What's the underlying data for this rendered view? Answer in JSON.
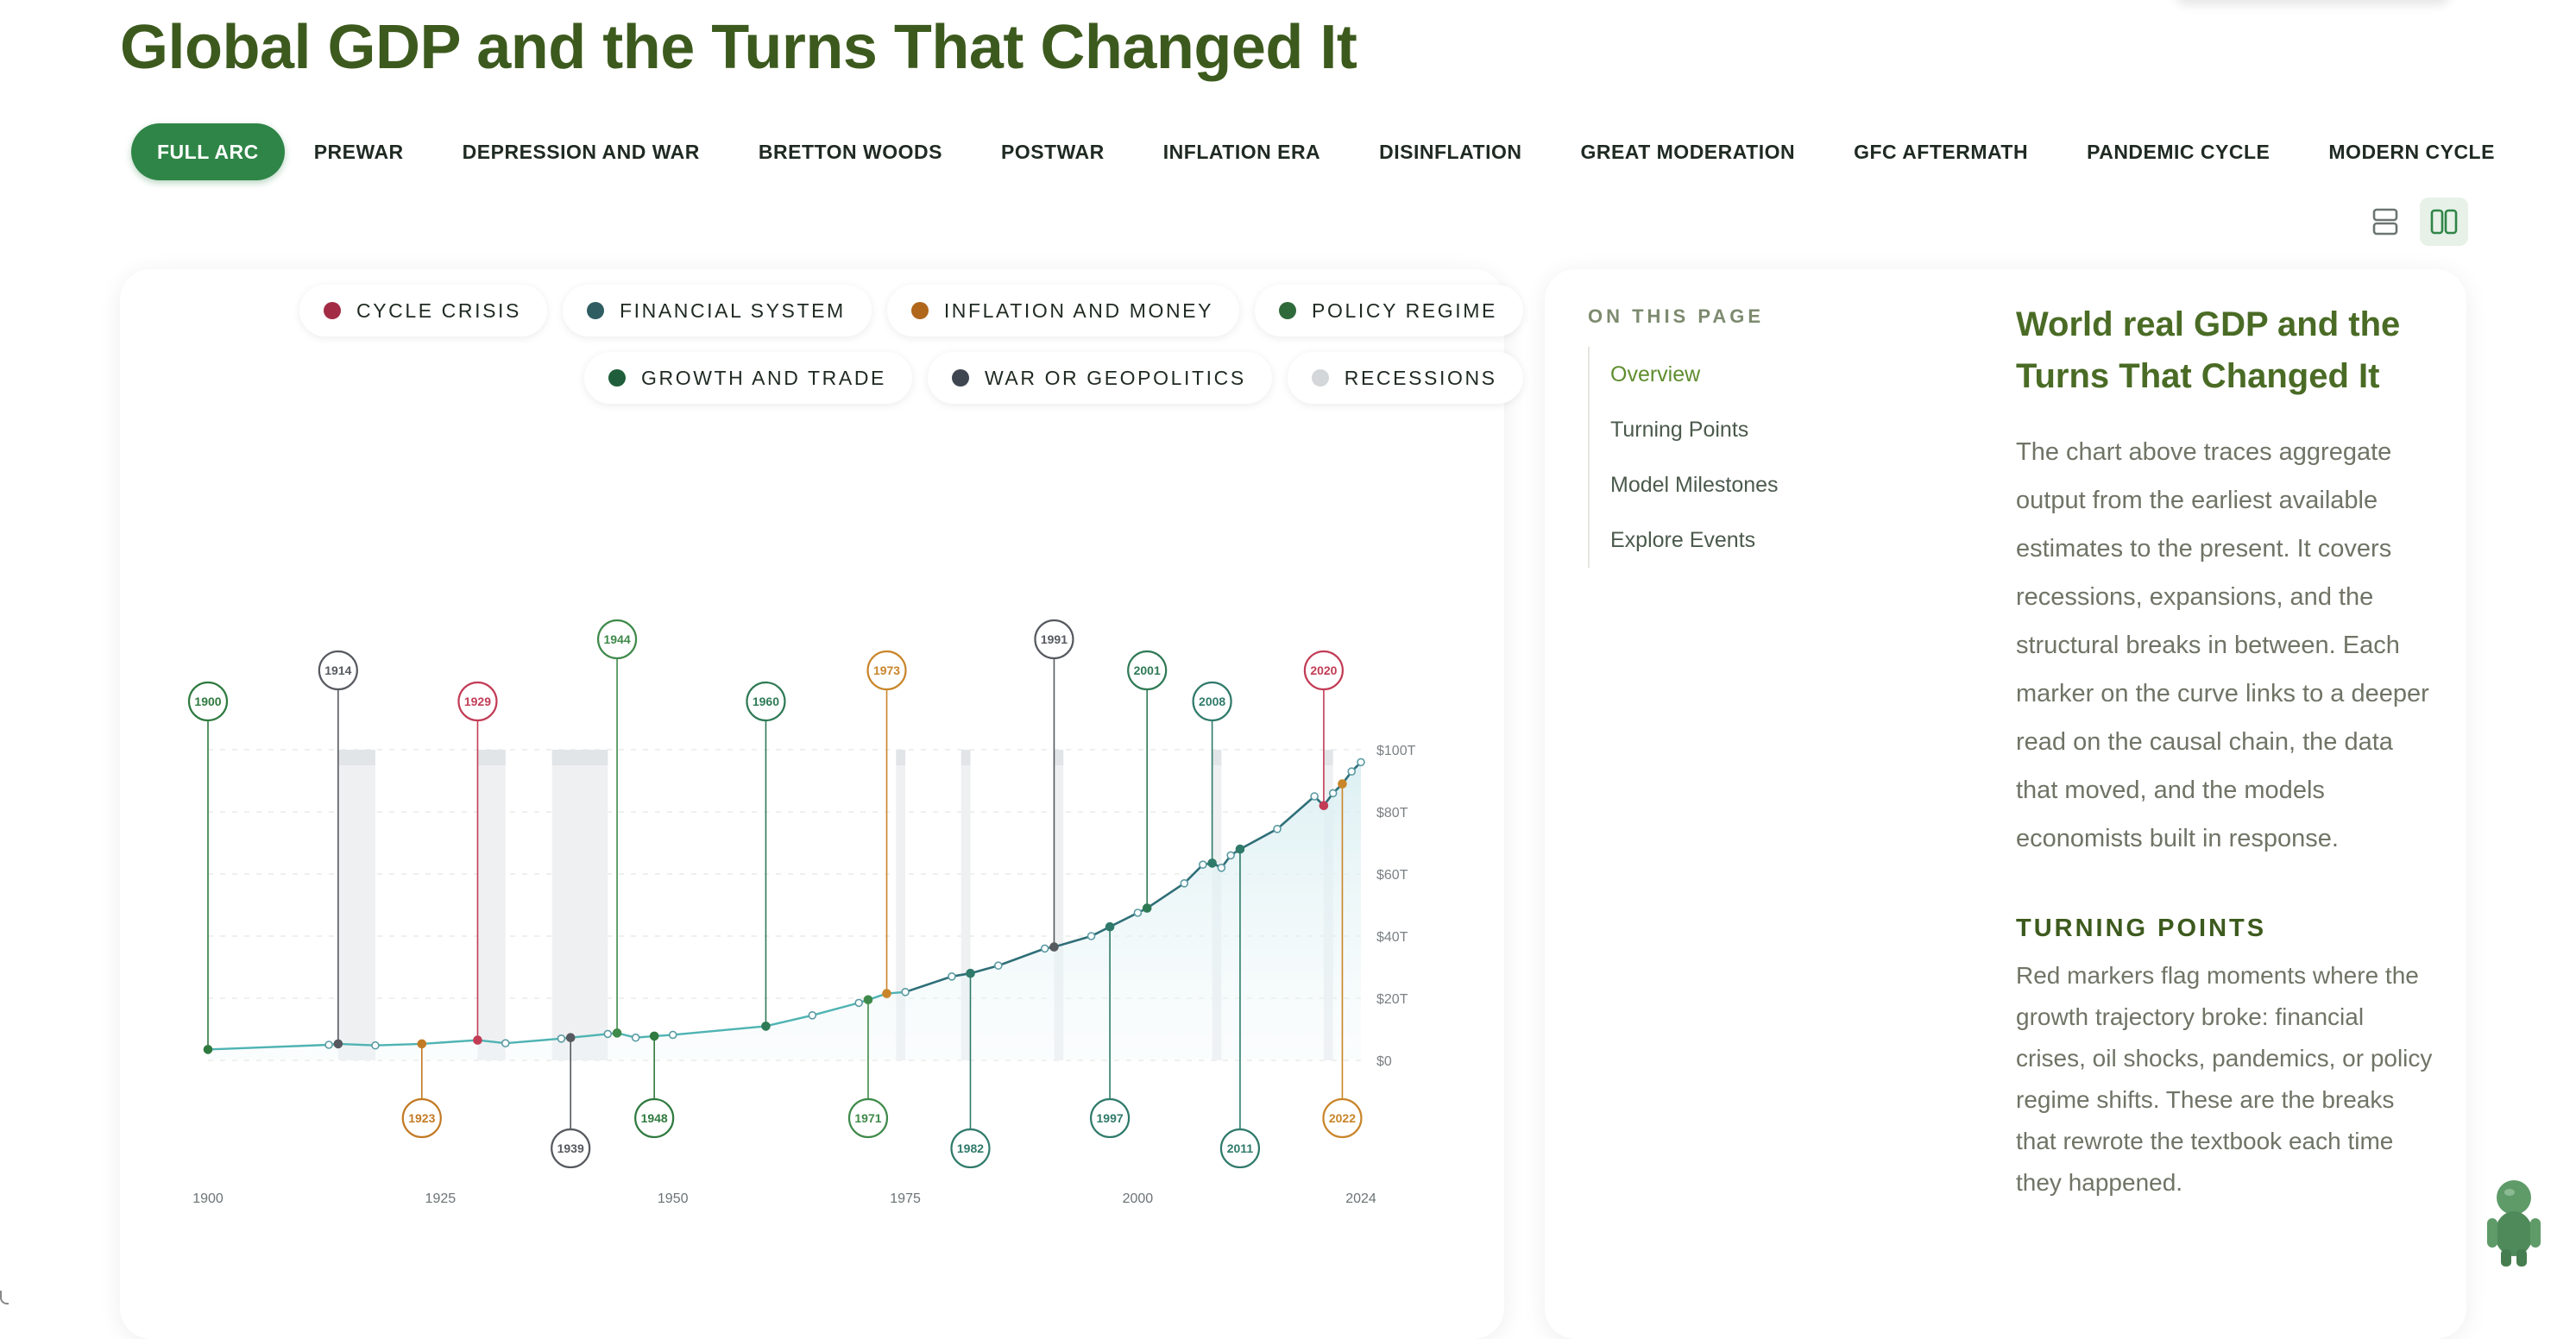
{
  "page": {
    "title": "Global GDP and the Turns That Changed It"
  },
  "tabs": [
    {
      "label": "FULL ARC",
      "active": true
    },
    {
      "label": "PREWAR"
    },
    {
      "label": "DEPRESSION AND WAR"
    },
    {
      "label": "BRETTON WOODS"
    },
    {
      "label": "POSTWAR"
    },
    {
      "label": "INFLATION ERA"
    },
    {
      "label": "DISINFLATION"
    },
    {
      "label": "GREAT MODERATION"
    },
    {
      "label": "GFC AFTERMATH"
    },
    {
      "label": "PANDEMIC CYCLE"
    },
    {
      "label": "MODERN CYCLE"
    }
  ],
  "view_toggle": {
    "stacked_icon": "rows-layout-icon",
    "split_icon": "columns-layout-icon"
  },
  "legend": [
    {
      "label": "CYCLE CRISIS",
      "color": "#a32b44"
    },
    {
      "label": "FINANCIAL SYSTEM",
      "color": "#2f5d62"
    },
    {
      "label": "INFLATION AND MONEY",
      "color": "#b0661b"
    },
    {
      "label": "POLICY REGIME",
      "color": "#2f6a3b"
    },
    {
      "label": "GROWTH AND TRADE",
      "color": "#1f5e3a"
    },
    {
      "label": "WAR OR GEOPOLITICS",
      "color": "#3f4650"
    },
    {
      "label": "RECESSIONS",
      "color": "#d4d7d9"
    }
  ],
  "chart_data": {
    "type": "area",
    "x_ticks": [
      "1900",
      "1925",
      "1950",
      "1975",
      "2000",
      "2024"
    ],
    "y_ticks": [
      "$0",
      "$20T",
      "$40T",
      "$60T",
      "$80T",
      "$100T"
    ],
    "xlim": [
      1900,
      2024
    ],
    "ylim": [
      0,
      100
    ],
    "grid": true,
    "line_color": "#4fb3b3",
    "line_color_recent": "#1e4f5e",
    "series": [
      {
        "values": [
          [
            1900,
            3.5
          ],
          [
            1913,
            5
          ],
          [
            1914,
            5.3
          ],
          [
            1918,
            4.8
          ],
          [
            1923,
            5.3
          ],
          [
            1929,
            6.5
          ],
          [
            1932,
            5.5
          ],
          [
            1938,
            7
          ],
          [
            1939,
            7.3
          ],
          [
            1943,
            8.5
          ],
          [
            1944,
            8.8
          ],
          [
            1946,
            7.3
          ],
          [
            1948,
            7.8
          ],
          [
            1950,
            8.2
          ],
          [
            1960,
            11
          ],
          [
            1965,
            14.5
          ],
          [
            1970,
            18.5
          ],
          [
            1971,
            19.5
          ],
          [
            1973,
            21.5
          ],
          [
            1975,
            22
          ],
          [
            1980,
            27
          ],
          [
            1982,
            28
          ],
          [
            1985,
            30.5
          ],
          [
            1990,
            36
          ],
          [
            1991,
            36.5
          ],
          [
            1995,
            40
          ],
          [
            1997,
            43
          ],
          [
            2000,
            47.5
          ],
          [
            2001,
            49
          ],
          [
            2005,
            57
          ],
          [
            2007,
            63
          ],
          [
            2008,
            63.5
          ],
          [
            2009,
            62
          ],
          [
            2010,
            66
          ],
          [
            2011,
            68
          ],
          [
            2015,
            74.5
          ],
          [
            2019,
            85
          ],
          [
            2020,
            82
          ],
          [
            2021,
            86
          ],
          [
            2022,
            89
          ],
          [
            2023,
            93
          ],
          [
            2024,
            96
          ]
        ]
      }
    ],
    "recessions": [
      [
        1914,
        1918
      ],
      [
        1929,
        1932
      ],
      [
        1937,
        1943
      ],
      [
        1974,
        1975
      ],
      [
        1981,
        1982
      ],
      [
        1991,
        1992
      ],
      [
        2008,
        2009
      ],
      [
        2020,
        2021
      ]
    ],
    "events": [
      {
        "year": "1900",
        "x": 1900,
        "y": 3.5,
        "category": "growth",
        "side": "above",
        "color": "#2f7a3f"
      },
      {
        "year": "1914",
        "x": 1914,
        "y": 5.3,
        "category": "war",
        "side": "above",
        "color": "#56595f"
      },
      {
        "year": "1923",
        "x": 1923,
        "y": 5.3,
        "category": "inflation",
        "side": "below",
        "color": "#c27a24"
      },
      {
        "year": "1929",
        "x": 1929,
        "y": 6.5,
        "category": "crisis",
        "side": "above",
        "color": "#c23c56"
      },
      {
        "year": "1939",
        "x": 1939,
        "y": 7.3,
        "category": "war",
        "side": "below",
        "color": "#56595f"
      },
      {
        "year": "1944",
        "x": 1944,
        "y": 8.8,
        "category": "policy",
        "side": "above",
        "color": "#3f8a4a"
      },
      {
        "year": "1948",
        "x": 1948,
        "y": 7.8,
        "category": "growth",
        "side": "below",
        "color": "#2f7a3f"
      },
      {
        "year": "1960",
        "x": 1960,
        "y": 11,
        "category": "growth",
        "side": "above",
        "color": "#2f7a56"
      },
      {
        "year": "1971",
        "x": 1971,
        "y": 19.5,
        "category": "policy",
        "side": "below",
        "color": "#3f8a4a"
      },
      {
        "year": "1973",
        "x": 1973,
        "y": 21.5,
        "category": "inflation",
        "side": "above",
        "color": "#c9852a"
      },
      {
        "year": "1982",
        "x": 1982,
        "y": 28,
        "category": "financial",
        "side": "below",
        "color": "#2f7a6a"
      },
      {
        "year": "1991",
        "x": 1991,
        "y": 36.5,
        "category": "war",
        "side": "above",
        "color": "#56595f"
      },
      {
        "year": "1997",
        "x": 1997,
        "y": 43,
        "category": "financial",
        "side": "below",
        "color": "#2f7a6a"
      },
      {
        "year": "2001",
        "x": 2001,
        "y": 49,
        "category": "growth",
        "side": "above",
        "color": "#2f7a56"
      },
      {
        "year": "2008",
        "x": 2008,
        "y": 63.5,
        "category": "financial",
        "side": "above",
        "color": "#2f7a6a"
      },
      {
        "year": "2011",
        "x": 2011,
        "y": 68,
        "category": "financial",
        "side": "below",
        "color": "#2f7a6a"
      },
      {
        "year": "2020",
        "x": 2020,
        "y": 82,
        "category": "crisis",
        "side": "above",
        "color": "#c23c56"
      },
      {
        "year": "2022",
        "x": 2022,
        "y": 89,
        "category": "inflation",
        "side": "below",
        "color": "#c9852a"
      }
    ]
  },
  "sidebar": {
    "toc_label": "ON THIS PAGE",
    "toc": [
      {
        "label": "Overview",
        "active": true
      },
      {
        "label": "Turning Points"
      },
      {
        "label": "Model Milestones"
      },
      {
        "label": "Explore Events"
      }
    ]
  },
  "article": {
    "heading": "World real GDP and the Turns That Changed It",
    "intro": "The chart above traces aggregate output from the earliest available estimates to the present. It covers recessions, expansions, and the structural breaks in between. Each marker on the curve links to a deeper read on the causal chain, the data that moved, and the models economists built in response.",
    "section_title": "TURNING POINTS",
    "section_body": "Red markers flag moments where the growth trajectory broke: financial crises, oil shocks, pandemics, or policy regime shifts. These are the breaks that rewrote the textbook each time they happened."
  },
  "mascot": {
    "icon": "robot-mascot-icon"
  }
}
